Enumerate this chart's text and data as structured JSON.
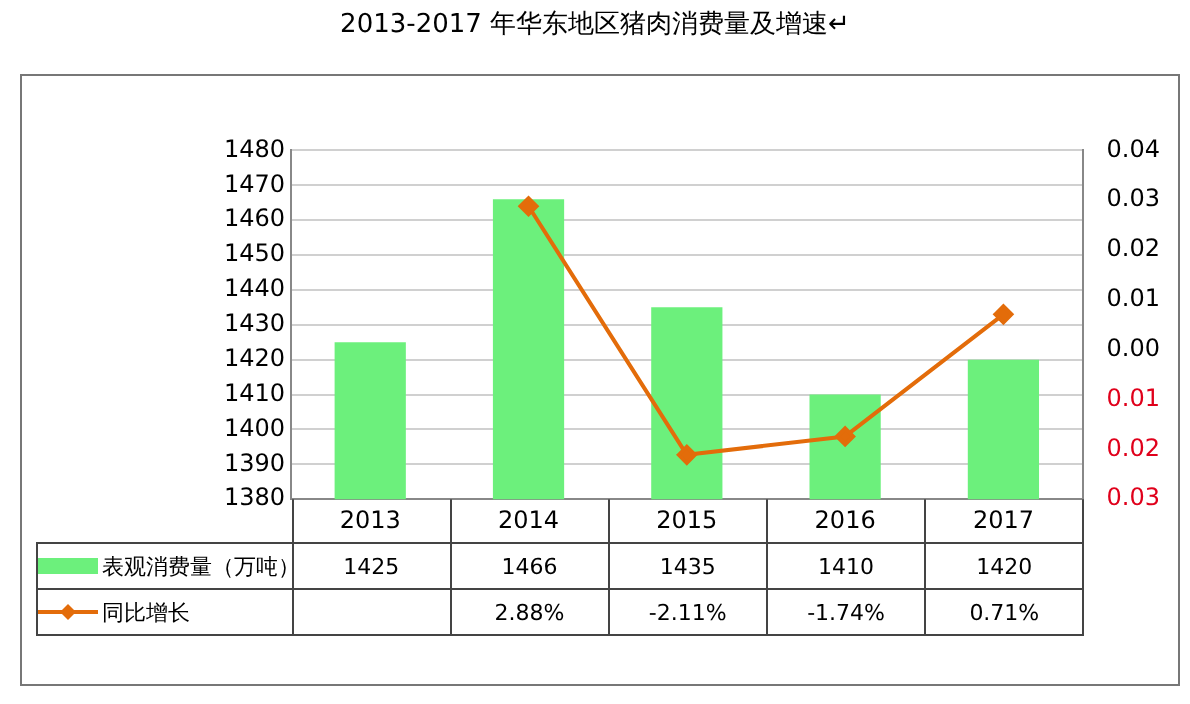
{
  "chart_data": {
    "type": "bar",
    "title": "2013-2017 年华东地区猪肉消费量及增速↵",
    "categories": [
      "2013",
      "2014",
      "2015",
      "2016",
      "2017"
    ],
    "series": [
      {
        "name": "表观消费量（万吨）",
        "color": "#6cf07c",
        "values": [
          1425,
          1466,
          1435,
          1410,
          1420
        ]
      },
      {
        "name": "同比增长",
        "type": "line",
        "axis": "y2",
        "color": "#e36c0a",
        "marker": "diamond",
        "values": [
          null,
          0.0288,
          -0.0211,
          -0.0174,
          0.0071
        ],
        "value_labels": [
          null,
          "2.88%",
          "-2.11%",
          "-1.74%",
          "0.71%"
        ]
      }
    ],
    "data_labels": true,
    "ylim": [
      1380,
      1480
    ],
    "yticks": [
      1380,
      1390,
      1400,
      1410,
      1420,
      1430,
      1440,
      1450,
      1460,
      1470,
      1480
    ],
    "y2lim": [
      -0.03,
      0.04
    ],
    "y2ticks": [
      {
        "value": -0.03,
        "label": "0.03"
      },
      {
        "value": -0.02,
        "label": "0.02"
      },
      {
        "value": -0.01,
        "label": "0.01"
      },
      {
        "value": 0,
        "label": "0.00"
      },
      {
        "value": 0.01,
        "label": "0.01"
      },
      {
        "value": 0.02,
        "label": "0.02"
      },
      {
        "value": 0.03,
        "label": "0.03"
      },
      {
        "value": 0.04,
        "label": "0.04"
      }
    ],
    "grid": "y",
    "legend": "bottom"
  }
}
